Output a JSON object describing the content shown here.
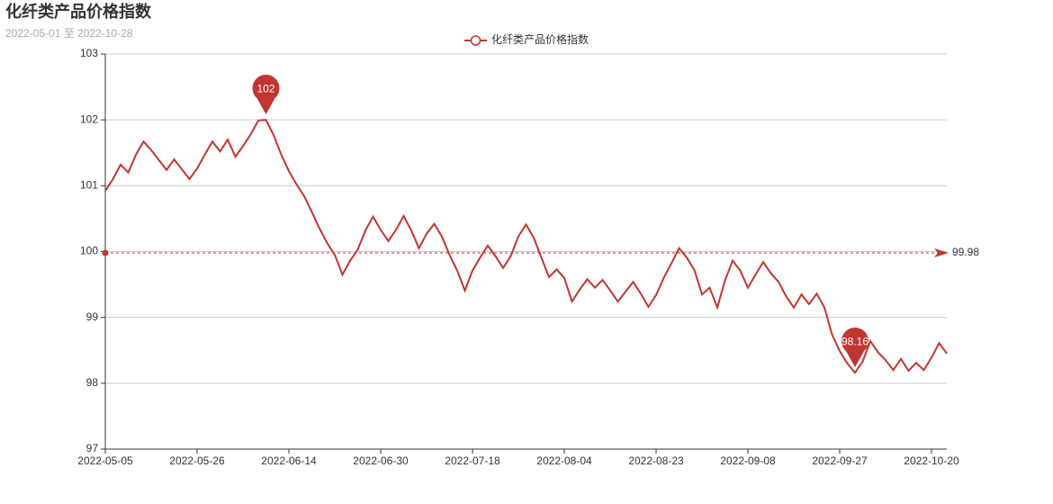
{
  "chart_data": {
    "type": "line",
    "title": "化纤类产品价格指数",
    "subtitle": "2022-05-01 至 2022-10-28",
    "categories": [
      "2022-05-05",
      null,
      null,
      null,
      null,
      null,
      null,
      null,
      null,
      null,
      null,
      null,
      "2022-05-26",
      null,
      null,
      null,
      null,
      null,
      null,
      null,
      null,
      null,
      null,
      null,
      "2022-06-14",
      null,
      null,
      null,
      null,
      null,
      null,
      null,
      null,
      null,
      null,
      null,
      "2022-06-30",
      null,
      null,
      null,
      null,
      null,
      null,
      null,
      null,
      null,
      null,
      null,
      "2022-07-18",
      null,
      null,
      null,
      null,
      null,
      null,
      null,
      null,
      null,
      null,
      null,
      "2022-08-04",
      null,
      null,
      null,
      null,
      null,
      null,
      null,
      null,
      null,
      null,
      null,
      "2022-08-23",
      null,
      null,
      null,
      null,
      null,
      null,
      null,
      null,
      null,
      null,
      null,
      "2022-09-08",
      null,
      null,
      null,
      null,
      null,
      null,
      null,
      null,
      null,
      null,
      null,
      "2022-09-27",
      null,
      null,
      null,
      null,
      null,
      null,
      null,
      null,
      null,
      null,
      null,
      "2022-10-20",
      null,
      null
    ],
    "series": [
      {
        "name": "化纤类产品价格指数",
        "color": "#c23531",
        "values": [
          100.92,
          101.1,
          101.32,
          101.2,
          101.47,
          101.67,
          101.54,
          101.39,
          101.24,
          101.4,
          101.25,
          101.1,
          101.26,
          101.47,
          101.67,
          101.52,
          101.7,
          101.44,
          101.6,
          101.78,
          101.99,
          102,
          101.77,
          101.47,
          101.22,
          101.02,
          100.84,
          100.6,
          100.35,
          100.13,
          99.95,
          99.65,
          99.86,
          100.03,
          100.32,
          100.53,
          100.33,
          100.16,
          100.33,
          100.54,
          100.32,
          100.05,
          100.27,
          100.42,
          100.23,
          99.95,
          99.71,
          99.41,
          99.71,
          99.91,
          100.09,
          99.93,
          99.75,
          99.93,
          100.23,
          100.41,
          100.21,
          99.91,
          99.61,
          99.73,
          99.6,
          99.24,
          99.42,
          99.58,
          99.45,
          99.57,
          99.41,
          99.24,
          99.39,
          99.54,
          99.36,
          99.16,
          99.34,
          99.6,
          99.82,
          100.05,
          99.91,
          99.72,
          99.35,
          99.45,
          99.15,
          99.56,
          99.86,
          99.71,
          99.45,
          99.65,
          99.84,
          99.67,
          99.54,
          99.32,
          99.15,
          99.35,
          99.2,
          99.36,
          99.15,
          98.74,
          98.49,
          98.3,
          98.16,
          98.33,
          98.64,
          98.47,
          98.35,
          98.2,
          98.37,
          98.19,
          98.31,
          98.2,
          98.39,
          98.61,
          98.45
        ]
      }
    ],
    "max_point": {
      "value": 102,
      "label": "102"
    },
    "min_point": {
      "value": 98.16,
      "label": "98.16"
    },
    "average_line": {
      "value": 99.98,
      "label": "99.98"
    },
    "ylim": [
      97,
      103
    ],
    "yticks": [
      97,
      98,
      99,
      100,
      101,
      102,
      103
    ],
    "grid": true
  }
}
